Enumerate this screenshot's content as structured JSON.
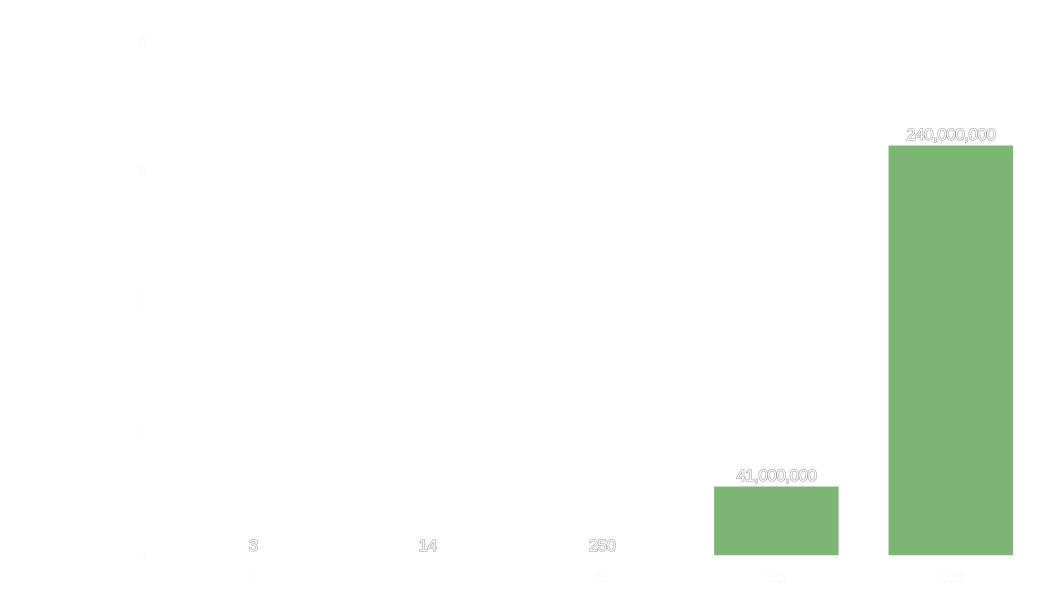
{
  "chart_data": {
    "type": "bar",
    "title": "",
    "xlabel": "",
    "ylabel": "",
    "categories": [
      "1",
      "",
      "11",
      "111",
      "1111"
    ],
    "values": [
      3,
      14,
      250,
      41000000,
      240000000
    ],
    "data_labels": [
      "3",
      "14",
      "250",
      "41,000,000",
      "240,000,000"
    ],
    "y_tick_labels": [
      "0",
      "1",
      "2",
      "3",
      "4"
    ],
    "ylim": [
      0,
      300000000
    ],
    "grid": false,
    "legend": "none",
    "colors": {
      "bar": "#7db574",
      "bar_edge": "#ffffff",
      "label_fill": "#ffffff",
      "label_outline": "#9a9a9a"
    }
  }
}
